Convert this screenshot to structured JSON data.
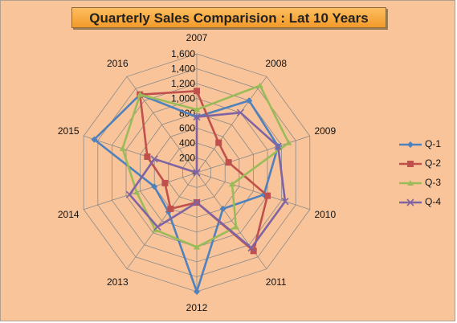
{
  "chart_data": {
    "type": "radar",
    "title": "Quarterly Sales Comparision : Lat 10 Years",
    "categories": [
      "2007",
      "2008",
      "2009",
      "2010",
      "2011",
      "2012",
      "2013",
      "2014",
      "2015",
      "2016"
    ],
    "radial_ticks": [
      "-",
      "200",
      "400",
      "600",
      "800",
      "1,000",
      "1,200",
      "1,400",
      "1,600"
    ],
    "rmax": 1600,
    "grid": true,
    "legend_position": "right",
    "series": [
      {
        "name": "Q-1",
        "color": "#4F81BD",
        "marker": "diamond",
        "values": [
          750,
          1200,
          1150,
          950,
          600,
          1600,
          650,
          600,
          1450,
          1300
        ]
      },
      {
        "name": "Q-2",
        "color": "#C0504D",
        "marker": "square",
        "values": [
          1100,
          500,
          450,
          1000,
          1300,
          400,
          600,
          450,
          700,
          1300
        ]
      },
      {
        "name": "Q-3",
        "color": "#9BBB59",
        "marker": "triangle",
        "values": [
          850,
          1450,
          1300,
          500,
          900,
          1000,
          950,
          850,
          1050,
          1300
        ]
      },
      {
        "name": "Q-4",
        "color": "#8064A2",
        "marker": "cross",
        "values": [
          750,
          1000,
          1150,
          1250,
          1250,
          400,
          900,
          950,
          600,
          0
        ]
      }
    ]
  }
}
